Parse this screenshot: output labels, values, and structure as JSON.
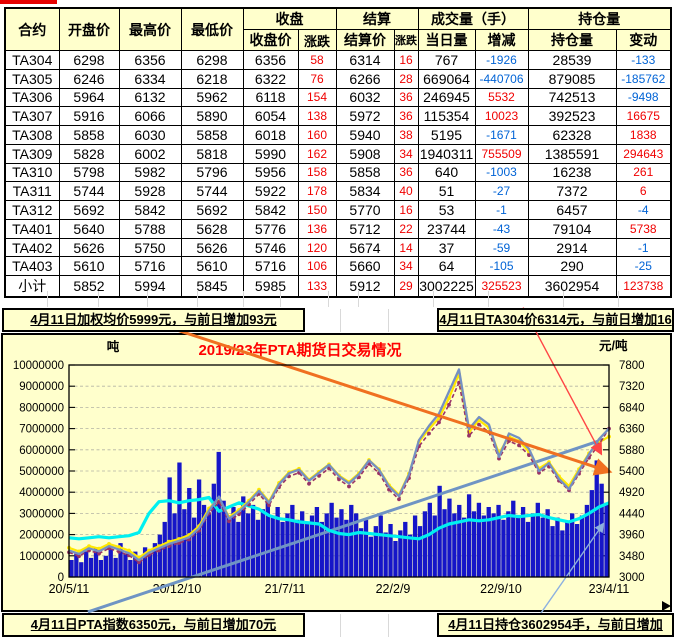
{
  "table": {
    "group_headers": {
      "contract": "合约",
      "open": "开盘价",
      "high": "最高价",
      "low": "最低价",
      "close_group": "收盘",
      "settle_group": "结算",
      "volume_group": "成交量（手）",
      "oi_group": "持仓量"
    },
    "sub_headers": [
      "收盘价",
      "涨跌",
      "结算价",
      "涨跌",
      "当日量",
      "增减",
      "持仓量",
      "变动"
    ],
    "rows": [
      [
        "TA304",
        "6298",
        "6356",
        "6298",
        "6356",
        "58",
        "6314",
        "16",
        "767",
        "-1926",
        "28539",
        "-133"
      ],
      [
        "TA305",
        "6246",
        "6334",
        "6218",
        "6322",
        "76",
        "6266",
        "28",
        "669064",
        "-440706",
        "879085",
        "-185762"
      ],
      [
        "TA306",
        "5964",
        "6132",
        "5962",
        "6118",
        "154",
        "6032",
        "36",
        "246945",
        "5532",
        "742513",
        "-9498"
      ],
      [
        "TA307",
        "5916",
        "6066",
        "5890",
        "6054",
        "138",
        "5972",
        "36",
        "115354",
        "10023",
        "392523",
        "16675"
      ],
      [
        "TA308",
        "5858",
        "6030",
        "5858",
        "6018",
        "160",
        "5940",
        "38",
        "5195",
        "-1671",
        "62328",
        "1838"
      ],
      [
        "TA309",
        "5828",
        "6002",
        "5818",
        "5990",
        "162",
        "5908",
        "34",
        "1940311",
        "755509",
        "1385591",
        "294643"
      ],
      [
        "TA310",
        "5798",
        "5982",
        "5796",
        "5956",
        "158",
        "5858",
        "36",
        "640",
        "-1003",
        "16238",
        "261"
      ],
      [
        "TA311",
        "5744",
        "5928",
        "5744",
        "5922",
        "178",
        "5834",
        "40",
        "51",
        "-27",
        "7372",
        "6"
      ],
      [
        "TA312",
        "5692",
        "5842",
        "5692",
        "5842",
        "150",
        "5770",
        "16",
        "53",
        "-1",
        "6457",
        "-4"
      ],
      [
        "TA401",
        "5640",
        "5788",
        "5628",
        "5776",
        "136",
        "5712",
        "22",
        "23744",
        "-43",
        "79104",
        "5738"
      ],
      [
        "TA402",
        "5626",
        "5750",
        "5626",
        "5746",
        "120",
        "5674",
        "14",
        "37",
        "-59",
        "2914",
        "-1"
      ],
      [
        "TA403",
        "5610",
        "5716",
        "5610",
        "5716",
        "106",
        "5660",
        "34",
        "64",
        "-105",
        "290",
        "-25"
      ],
      [
        "小计",
        "5852",
        "5994",
        "5845",
        "5985",
        "133",
        "5912",
        "29",
        "3002225",
        "325523",
        "3602954",
        "123738"
      ]
    ]
  },
  "info_bars": {
    "weighted_avg": "4月11日加权均价5999元，与前日增加93元",
    "ta304": "4月11日TA304价6314元，与前日增加16元",
    "pta_index": "4月11日PTA指数6350元，与前日增加70元",
    "open_interest": "4月11日持仓3602954手，与前日增加123738手"
  },
  "chart_data": {
    "type": "combo",
    "title": "2019/23年PTA期货日交易情况",
    "left_axis": {
      "title": "吨",
      "min": 0,
      "max": 10000000,
      "step": 1000000
    },
    "right_axis": {
      "title": "元/吨",
      "min": 3000,
      "max": 7800,
      "step": 480
    },
    "x_ticks": [
      "20/5/11",
      "20/12/10",
      "21/7/11",
      "22/2/9",
      "22/9/10",
      "23/4/11"
    ],
    "grid": "dashed-horizontal",
    "legend": "none",
    "series": [
      {
        "name": "volume-bars",
        "type": "bar",
        "axis": "left",
        "color": "#1616c8",
        "values_millions": [
          0.8,
          1.1,
          0.7,
          1.2,
          0.9,
          1.4,
          0.8,
          1.0,
          1.3,
          0.9,
          1.6,
          1.1,
          0.8,
          1.2,
          1.0,
          1.4,
          1.1,
          1.6,
          2.0,
          2.6,
          4.7,
          3.0,
          5.4,
          3.2,
          4.2,
          2.8,
          4.6,
          3.4,
          3.0,
          4.4,
          5.9,
          3.6,
          2.8,
          3.3,
          2.6,
          3.8,
          3.0,
          3.4,
          2.7,
          3.2,
          3.6,
          2.9,
          3.3,
          2.6,
          3.0,
          3.4,
          2.7,
          3.1,
          2.5,
          2.9,
          3.3,
          2.6,
          3.0,
          3.5,
          2.8,
          3.2,
          2.7,
          3.4,
          3.0,
          2.3,
          2.7,
          1.9,
          2.4,
          2.9,
          2.1,
          2.5,
          1.7,
          2.2,
          2.6,
          2.0,
          2.9,
          2.4,
          3.1,
          3.5,
          2.9,
          4.3,
          3.2,
          3.7,
          3.0,
          3.4,
          2.8,
          3.9,
          3.1,
          3.5,
          2.9,
          3.3,
          3.0,
          3.4,
          2.7,
          3.1,
          3.6,
          2.9,
          3.3,
          2.6,
          3.0,
          3.5,
          2.8,
          3.2,
          2.4,
          2.8,
          2.2,
          2.6,
          3.0,
          2.5,
          2.9,
          3.4,
          4.1,
          5.5,
          4.4,
          3.5
        ]
      },
      {
        "name": "open-interest-line",
        "type": "line",
        "axis": "left",
        "color": "#00f0f0",
        "width": 3.2,
        "values_millions": [
          1.85,
          1.8,
          1.85,
          1.9,
          1.85,
          1.9,
          1.95,
          2.1,
          3.0,
          3.55,
          3.6,
          3.5,
          3.6,
          3.65,
          3.75,
          3.1,
          3.3,
          3.5,
          3.35,
          3.2,
          2.9,
          2.75,
          2.7,
          2.6,
          2.55,
          2.5,
          2.2,
          2.05,
          2.0,
          2.1,
          2.05,
          2.0,
          1.95,
          1.9,
          1.85,
          1.8,
          2.0,
          2.3,
          2.5,
          2.6,
          2.7,
          2.65,
          2.7,
          2.8,
          2.9,
          2.85,
          2.9,
          2.95,
          2.8,
          2.7,
          2.6,
          2.75,
          3.0,
          3.3,
          3.5
        ]
      },
      {
        "name": "price-yellow-line",
        "type": "line",
        "axis": "right",
        "color": "#ffe800",
        "width": 2.2,
        "marker": true,
        "values": [
          3660,
          3580,
          3700,
          3640,
          3750,
          3680,
          3600,
          3440,
          3600,
          3700,
          3800,
          3860,
          3950,
          4150,
          4550,
          4780,
          4360,
          4520,
          4730,
          4980,
          4710,
          5130,
          5370,
          5450,
          5200,
          5380,
          5550,
          5300,
          5150,
          5350,
          5650,
          5440,
          5080,
          4860,
          5340,
          6060,
          6350,
          6600,
          7050,
          7600,
          6280,
          6550,
          6380,
          5800,
          6180,
          6080,
          5840,
          5460,
          5600,
          5280,
          5060,
          5440,
          5800,
          6050,
          6180
        ]
      },
      {
        "name": "price-purple-dotted-line",
        "type": "line",
        "axis": "right",
        "color": "#993366",
        "width": 1.6,
        "dashed": true,
        "marker": true,
        "values": [
          3560,
          3470,
          3600,
          3530,
          3650,
          3570,
          3490,
          3330,
          3500,
          3600,
          3700,
          3770,
          3850,
          4050,
          4440,
          4700,
          4260,
          4420,
          4640,
          4880,
          4620,
          5030,
          5280,
          5360,
          5110,
          5290,
          5460,
          5210,
          5050,
          5260,
          5560,
          5350,
          4980,
          4760,
          5240,
          5960,
          6250,
          6500,
          6900,
          7400,
          6200,
          6450,
          6280,
          5680,
          6080,
          5980,
          5760,
          5360,
          5500,
          5180,
          4960,
          5340,
          5700,
          6000,
          6360
        ]
      },
      {
        "name": "price-blue-line",
        "type": "line",
        "axis": "right",
        "color": "#7590c2",
        "width": 2.3,
        "values": [
          3600,
          3520,
          3650,
          3580,
          3700,
          3620,
          3540,
          3380,
          3550,
          3650,
          3750,
          3820,
          3900,
          4100,
          4500,
          4820,
          4320,
          4480,
          4700,
          4950,
          4680,
          5100,
          5350,
          5430,
          5180,
          5360,
          5540,
          5280,
          5120,
          5330,
          5640,
          5430,
          5050,
          4830,
          5320,
          6100,
          6420,
          6700,
          7200,
          7700,
          6350,
          6620,
          6450,
          5720,
          6250,
          6150,
          5900,
          5400,
          5580,
          5220,
          4990,
          5400,
          5780,
          6120,
          6360
        ]
      }
    ],
    "trendlines": [
      {
        "name": "blue-uptrend",
        "color": "#6f94c4",
        "width": 3,
        "x1": 0.035,
        "v1": 2210,
        "x2": 0.991,
        "v2": 6120,
        "arrow": false,
        "layer": "mid"
      },
      {
        "name": "lightblue-uptrend-arrow",
        "color": "#8cb0e0",
        "width": 1.4,
        "x1": 0.839,
        "v1": 1570,
        "x2": 0.989,
        "v2": 4200,
        "arrow": true,
        "arrow_size": 7,
        "layer": "mid"
      },
      {
        "name": "orange-downtrend-arrow",
        "color": "#f07020",
        "width": 3,
        "x1": 0.098,
        "v1": 9000,
        "x2": 1.0,
        "v2": 5390,
        "arrow": true,
        "arrow_size": 6,
        "layer": "top"
      },
      {
        "name": "red-downtrend-arrow",
        "color": "#ff4545",
        "width": 1.4,
        "x1": 0.841,
        "v1": 9100,
        "x2": 0.985,
        "v2": 5800,
        "arrow": true,
        "arrow_size": 9,
        "layer": "top"
      }
    ]
  }
}
